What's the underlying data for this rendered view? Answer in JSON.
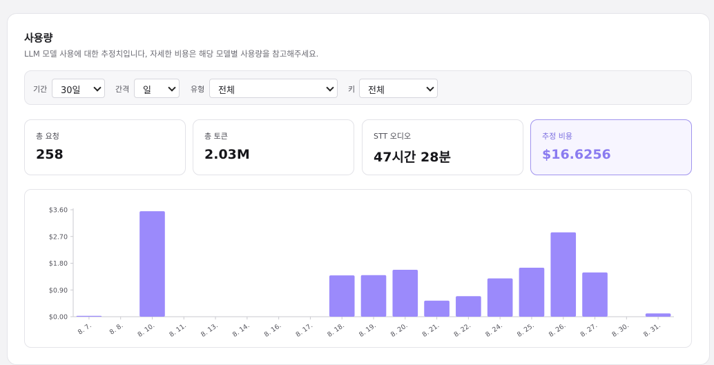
{
  "header": {
    "title": "사용량",
    "subtitle": "LLM 모델 사용에 대한 추정치입니다, 자세한 비용은 해당 모델별 사용량을 참고해주세요."
  },
  "filters": {
    "period": {
      "label": "기간",
      "value": "30일"
    },
    "interval": {
      "label": "간격",
      "value": "일"
    },
    "type": {
      "label": "유형",
      "value": "전체"
    },
    "key": {
      "label": "키",
      "value": "전체"
    }
  },
  "stats": {
    "total_requests": {
      "label": "총 요청",
      "value": "258"
    },
    "total_tokens": {
      "label": "총 토큰",
      "value": "2.03M"
    },
    "stt_audio": {
      "label": "STT 오디오",
      "value": "47시간 28분"
    },
    "estimated_cost": {
      "label": "추정 비용",
      "value": "$16.6256"
    }
  },
  "colors": {
    "accent": "#9b8afb",
    "accent_text": "#8a7bf0"
  },
  "chart_data": {
    "type": "bar",
    "categories": [
      "8. 7.",
      "8. 8.",
      "8. 10.",
      "8. 11.",
      "8. 13.",
      "8. 14.",
      "8. 16.",
      "8. 17.",
      "8. 18.",
      "8. 19.",
      "8. 20.",
      "8. 21.",
      "8. 22.",
      "8. 24.",
      "8. 25.",
      "8. 26.",
      "8. 27.",
      "8. 30.",
      "8. 31."
    ],
    "values": [
      0.03,
      0,
      3.55,
      0,
      0,
      0,
      0,
      0,
      1.39,
      1.4,
      1.58,
      0.54,
      0.69,
      1.29,
      1.65,
      2.84,
      1.49,
      0,
      0.11
    ],
    "yticks": [
      "$0.00",
      "$0.90",
      "$1.80",
      "$2.70",
      "$3.60"
    ],
    "ylim": [
      0,
      3.6
    ],
    "grid": false,
    "color": "#9b8afb"
  }
}
